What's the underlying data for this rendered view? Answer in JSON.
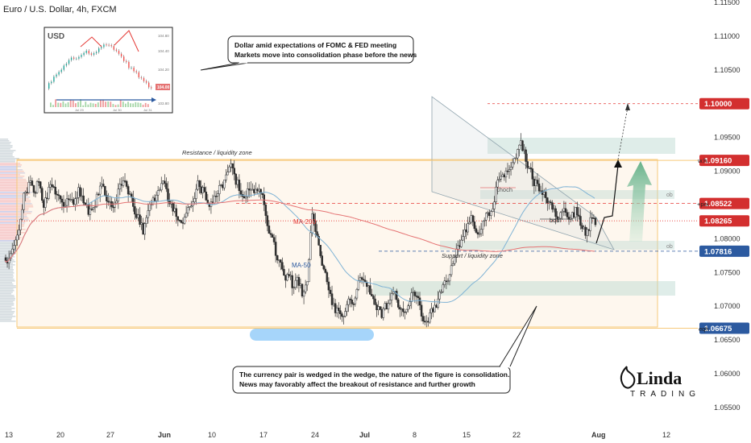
{
  "header": {
    "title": "Euro / U.S. Dollar, 4h, FXCM"
  },
  "colors": {
    "bull": "#26a69a",
    "bear": "#ef5350",
    "candle_body": "#2d2d2d",
    "ma200": "#e57373",
    "ma50": "#7fb3d5",
    "zone": "#f7c97a",
    "wedge": "#9e9e9e",
    "arrow": "#7fc4a0",
    "level_red": "#e53935",
    "level_blue": "#2c5aa0"
  },
  "callouts": {
    "top_line1": "Dollar amid expectations of FOMC & FED meeting",
    "top_line2": "Markets move into consolidation phase before the news",
    "bottom_line1": "The currency pair is wedged in the wedge, the nature of the figure is consolidation.",
    "bottom_line2": "News may favorably affect the breakout of resistance and further growth"
  },
  "annotations": {
    "resistance": "Resistance / liquidity zone",
    "support": "Support / liquidity zone",
    "ma200": "MA-200",
    "ma50": "MA-50",
    "choch": "choch",
    "bos": "bos",
    "ob1": "ob",
    "ob2": "ob",
    "wh": "w.h.",
    "poi": "+poi",
    "eqh": "eqh"
  },
  "inset": {
    "title": "USD",
    "ticks": [
      "104.80",
      "104.40",
      "104.20",
      "104.00",
      "103.80"
    ],
    "price_tag": "104.00",
    "x_ticks": [
      "Jul 29",
      "Jul 30",
      "Jul 31"
    ]
  },
  "logo": {
    "line1": "Linda",
    "line2": "TRADING"
  },
  "chart_data": {
    "type": "candlestick",
    "title": "Euro / U.S. Dollar, 4h, FXCM",
    "x_tick_labels": [
      "13",
      "20",
      "27",
      "Jun",
      "10",
      "17",
      "24",
      "Jul",
      "8",
      "15",
      "22",
      "Aug",
      "12"
    ],
    "y_tick_labels": [
      "1.11500",
      "1.11000",
      "1.10500",
      "1.10000",
      "1.09500",
      "1.09000",
      "1.08500",
      "1.08000",
      "1.07500",
      "1.07000",
      "1.06500",
      "1.06000",
      "1.05500"
    ],
    "ylim": [
      1.0525,
      1.1155
    ],
    "price_tags": [
      {
        "label": "1.10000",
        "value": 1.1,
        "style": "red"
      },
      {
        "label": "1.09160",
        "value": 1.0916,
        "style": "red"
      },
      {
        "label": "1.08522",
        "value": 1.08522,
        "style": "red"
      },
      {
        "label": "1.08265",
        "value": 1.08265,
        "style": "red"
      },
      {
        "label": "1.07816",
        "value": 1.07816,
        "style": "blue"
      },
      {
        "label": "1.06675",
        "value": 1.06675,
        "style": "blue"
      }
    ],
    "levels": {
      "target": 1.1,
      "resistance_top": 1.0916,
      "poi": 1.08522,
      "ma_level": 1.08265,
      "support": 1.07816,
      "eqh": 1.06675
    },
    "close_path": [
      1.0772,
      1.079,
      1.081,
      1.086,
      1.088,
      1.087,
      1.089,
      1.085,
      1.087,
      1.088,
      1.086,
      1.0845,
      1.086,
      1.085,
      1.087,
      1.0855,
      1.084,
      1.085,
      1.087,
      1.088,
      1.086,
      1.0845,
      1.087,
      1.088,
      1.0865,
      1.085,
      1.083,
      1.081,
      1.084,
      1.086,
      1.087,
      1.088,
      1.086,
      1.084,
      1.083,
      1.082,
      1.084,
      1.086,
      1.088,
      1.087,
      1.0845,
      1.085,
      1.087,
      1.088,
      1.0895,
      1.091,
      1.088,
      1.086,
      1.087,
      1.088,
      1.087,
      1.086,
      1.082,
      1.08,
      1.077,
      1.076,
      1.074,
      1.073,
      1.074,
      1.072,
      1.073,
      1.084,
      1.08,
      1.076,
      1.073,
      1.071,
      1.069,
      1.068,
      1.07,
      1.071,
      1.072,
      1.074,
      1.073,
      1.071,
      1.07,
      1.069,
      1.07,
      1.072,
      1.071,
      1.0695,
      1.07,
      1.072,
      1.071,
      1.069,
      1.068,
      1.069,
      1.07,
      1.072,
      1.074,
      1.076,
      1.078,
      1.08,
      1.081,
      1.083,
      1.081,
      1.082,
      1.083,
      1.084,
      1.087,
      1.089,
      1.09,
      1.091,
      1.092,
      1.094,
      1.092,
      1.09,
      1.088,
      1.087,
      1.086,
      1.086,
      1.084,
      1.0845,
      1.0835,
      1.083,
      1.084,
      1.082,
      1.081,
      1.0825,
      1.0815
    ]
  }
}
